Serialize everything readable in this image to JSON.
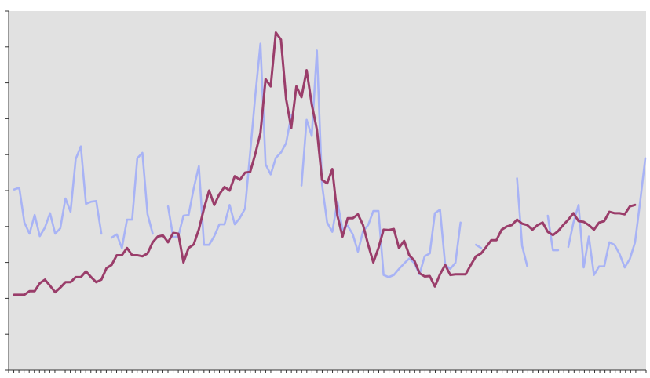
{
  "chart_data": {
    "type": "line",
    "title": "",
    "xlabel": "",
    "ylabel": "",
    "grid": false,
    "legend": "none",
    "background_color": "#e1e1e1",
    "ylim": [
      0,
      10
    ],
    "y_tick_count": 10,
    "x_tick_count": 124,
    "series": [
      {
        "color": "#a8b3f5",
        "values": [
          5.03,
          5.08,
          4.11,
          3.8,
          4.32,
          3.73,
          3.97,
          4.37,
          3.8,
          3.95,
          4.78,
          4.41,
          5.88,
          6.23,
          4.63,
          4.69,
          4.71,
          3.8,
          null,
          3.69,
          3.78,
          3.4,
          4.19,
          4.19,
          5.9,
          6.05,
          4.34,
          3.8,
          null,
          null,
          4.56,
          3.7,
          3.73,
          4.3,
          4.32,
          5.06,
          5.68,
          3.49,
          3.49,
          3.73,
          4.06,
          4.06,
          4.6,
          4.06,
          4.24,
          4.5,
          6.06,
          7.65,
          9.09,
          5.73,
          5.45,
          5.91,
          6.06,
          6.32,
          7.09,
          null,
          5.14,
          6.97,
          6.52,
          8.9,
          5.17,
          4.11,
          3.85,
          4.69,
          3.91,
          4.02,
          3.78,
          3.3,
          3.87,
          4.04,
          4.43,
          4.43,
          2.65,
          2.59,
          2.65,
          2.82,
          2.97,
          3.11,
          2.98,
          2.67,
          3.17,
          3.25,
          4.37,
          4.47,
          2.93,
          2.82,
          2.99,
          4.11,
          null,
          null,
          3.49,
          3.4,
          null,
          null,
          null,
          null,
          null,
          null,
          5.34,
          3.46,
          2.89,
          null,
          null,
          null,
          4.3,
          3.34,
          3.34,
          null,
          3.43,
          4.11,
          4.6,
          2.86,
          3.72,
          2.65,
          2.89,
          2.89,
          3.56,
          3.49,
          3.23,
          2.86,
          3.1,
          3.56,
          4.69,
          5.9
        ]
      },
      {
        "color": "#9a3d6a",
        "values": [
          2.1,
          2.1,
          2.1,
          2.2,
          2.2,
          2.42,
          2.52,
          2.35,
          2.17,
          2.3,
          2.45,
          2.45,
          2.59,
          2.59,
          2.75,
          2.59,
          2.45,
          2.52,
          2.84,
          2.93,
          3.2,
          3.2,
          3.4,
          3.2,
          3.2,
          3.17,
          3.25,
          3.56,
          3.72,
          3.75,
          3.56,
          3.82,
          3.8,
          3.0,
          3.4,
          3.5,
          3.92,
          4.5,
          5.0,
          4.6,
          4.9,
          5.1,
          5.0,
          5.4,
          5.3,
          5.5,
          5.52,
          6.02,
          6.6,
          8.1,
          7.9,
          9.4,
          9.2,
          7.55,
          6.74,
          7.9,
          7.6,
          8.35,
          7.4,
          6.7,
          5.3,
          5.2,
          5.6,
          4.3,
          3.72,
          4.23,
          4.23,
          4.34,
          4.04,
          3.49,
          3.0,
          3.4,
          3.91,
          3.9,
          3.93,
          3.4,
          3.6,
          3.2,
          3.05,
          2.7,
          2.61,
          2.62,
          2.33,
          2.67,
          2.93,
          2.65,
          2.67,
          2.67,
          2.67,
          2.93,
          3.17,
          3.25,
          3.43,
          3.62,
          3.62,
          3.91,
          4.0,
          4.04,
          4.19,
          4.08,
          4.04,
          3.91,
          4.04,
          4.11,
          3.85,
          3.76,
          3.87,
          4.04,
          4.19,
          4.37,
          4.15,
          4.13,
          4.04,
          3.91,
          4.11,
          4.15,
          4.41,
          4.37,
          4.37,
          4.34,
          4.56,
          4.6
        ]
      }
    ]
  }
}
